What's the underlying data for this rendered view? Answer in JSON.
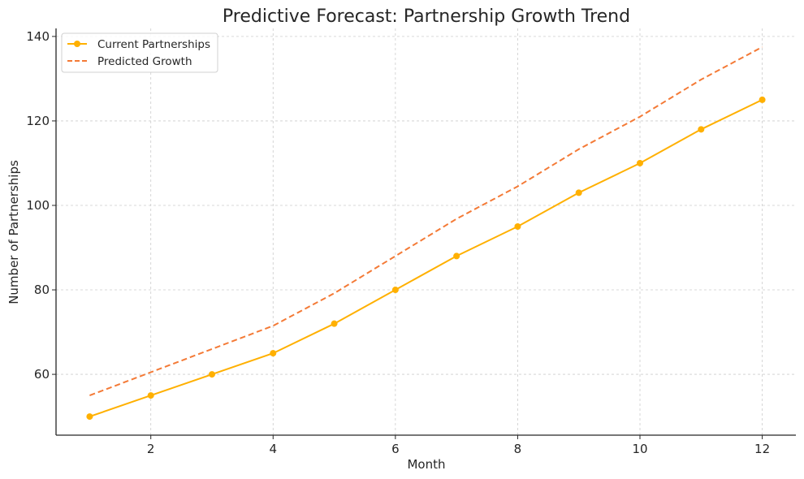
{
  "chart_data": {
    "type": "line",
    "title": "Predictive Forecast: Partnership Growth Trend",
    "xlabel": "Month",
    "ylabel": "Number of Partnerships",
    "x": [
      1,
      2,
      3,
      4,
      5,
      6,
      7,
      8,
      9,
      10,
      11,
      12
    ],
    "series": [
      {
        "name": "Current Partnerships",
        "values": [
          50,
          55,
          60,
          65,
          72,
          80,
          88,
          95,
          103,
          110,
          118,
          125
        ],
        "color": "#FFB000",
        "style": "solid",
        "marker": "circle"
      },
      {
        "name": "Predicted Growth",
        "values": [
          55,
          60.5,
          66,
          71.5,
          79.2,
          88,
          96.8,
          104.5,
          113.3,
          121,
          129.8,
          137.5
        ],
        "color": "#F47A36",
        "style": "dashed",
        "marker": "none"
      }
    ],
    "xticks": [
      2,
      4,
      6,
      8,
      10,
      12
    ],
    "yticks": [
      60,
      80,
      100,
      120,
      140
    ],
    "xlim": [
      0.45,
      12.55
    ],
    "ylim": [
      45.6,
      141.9
    ],
    "grid": true,
    "legend_position": "upper left"
  }
}
